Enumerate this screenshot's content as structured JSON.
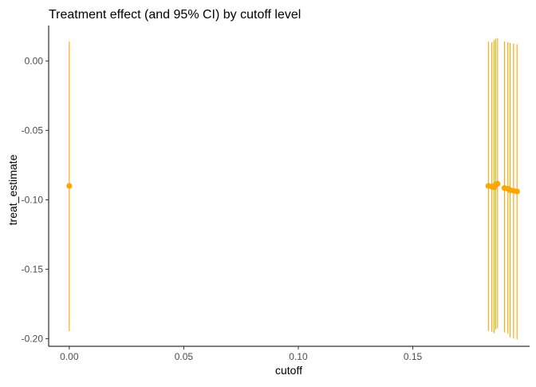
{
  "chart_data": {
    "type": "scatter",
    "title": "Treatment effect (and 95% CI) by cutoff level",
    "xlabel": "cutoff",
    "ylabel": "treat_estimate",
    "xlim": [
      -0.009,
      0.201
    ],
    "ylim": [
      -0.2055,
      0.0255
    ],
    "x_ticks": [
      0.0,
      0.05,
      0.1,
      0.15
    ],
    "x_tick_labels": [
      "0.00",
      "0.05",
      "0.10",
      "0.15"
    ],
    "y_ticks": [
      0.0,
      -0.05,
      -0.1,
      -0.15,
      -0.2
    ],
    "y_tick_labels": [
      "0.00",
      "-0.05",
      "-0.10",
      "-0.15",
      "-0.20"
    ],
    "grid": false,
    "color": "#FFA500",
    "points": [
      {
        "x": 0.0,
        "y": -0.09,
        "lower": -0.1945,
        "upper": 0.014
      },
      {
        "x": 0.183,
        "y": -0.09,
        "lower": -0.1945,
        "upper": 0.014
      },
      {
        "x": 0.1845,
        "y": -0.0905,
        "lower": -0.195,
        "upper": 0.0135
      },
      {
        "x": 0.1855,
        "y": -0.091,
        "lower": -0.196,
        "upper": 0.015
      },
      {
        "x": 0.1862,
        "y": -0.089,
        "lower": -0.1935,
        "upper": 0.016
      },
      {
        "x": 0.187,
        "y": -0.0885,
        "lower": -0.1925,
        "upper": 0.0165
      },
      {
        "x": 0.19,
        "y": -0.0915,
        "lower": -0.1955,
        "upper": 0.014
      },
      {
        "x": 0.1915,
        "y": -0.092,
        "lower": -0.1965,
        "upper": 0.0135
      },
      {
        "x": 0.1925,
        "y": -0.093,
        "lower": -0.199,
        "upper": 0.013
      },
      {
        "x": 0.194,
        "y": -0.0935,
        "lower": -0.2,
        "upper": 0.0125
      },
      {
        "x": 0.1955,
        "y": -0.094,
        "lower": -0.2005,
        "upper": 0.012
      }
    ]
  }
}
